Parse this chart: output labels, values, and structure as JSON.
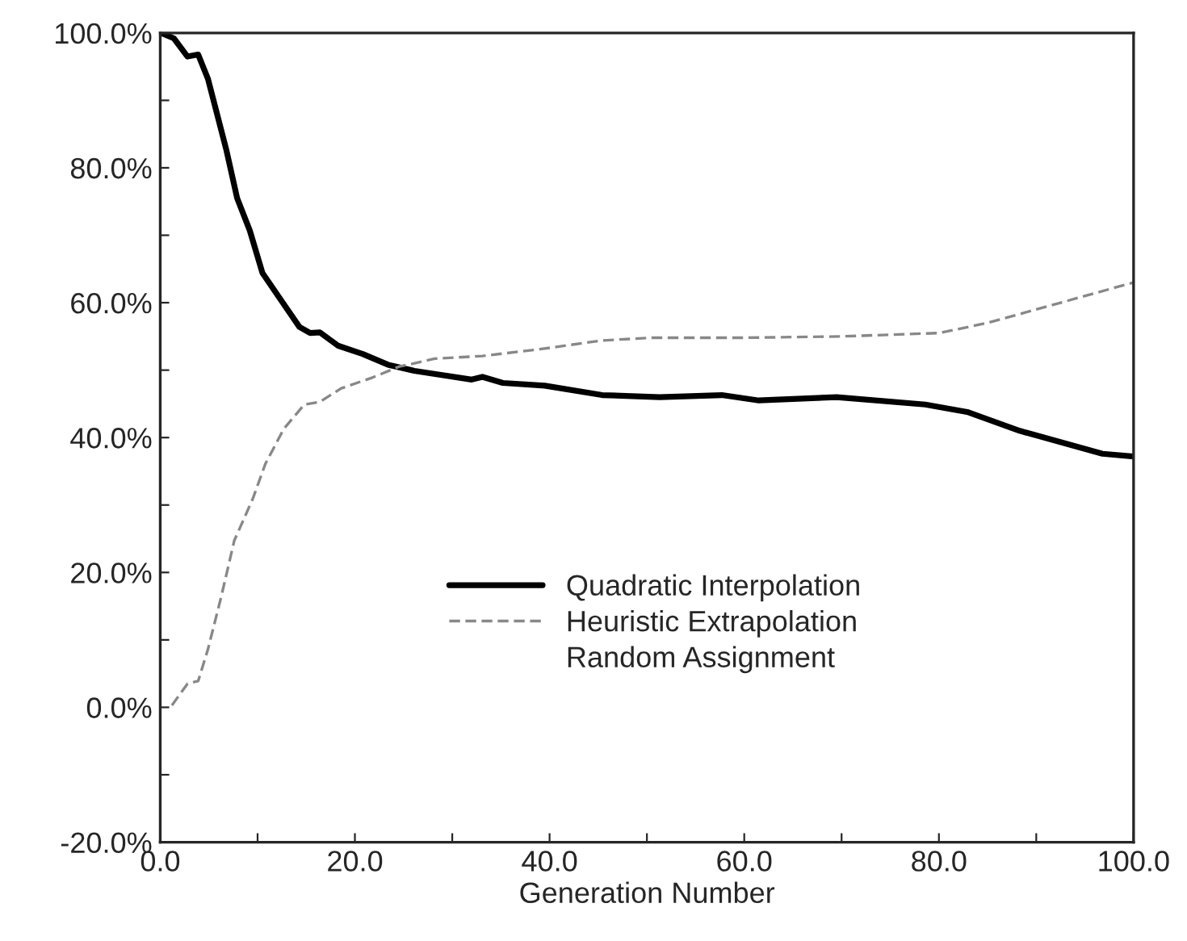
{
  "chart_data": {
    "type": "line",
    "xlabel": "Generation Number",
    "xlim": [
      0,
      100
    ],
    "xticks": [
      {
        "value": 0,
        "label": "0.0"
      },
      {
        "value": 10,
        "label": null
      },
      {
        "value": 20,
        "label": "20.0"
      },
      {
        "value": 30,
        "label": null
      },
      {
        "value": 40,
        "label": "40.0"
      },
      {
        "value": 50,
        "label": null
      },
      {
        "value": 60,
        "label": "60.0"
      },
      {
        "value": 70,
        "label": null
      },
      {
        "value": 80,
        "label": "80.0"
      },
      {
        "value": 90,
        "label": null
      },
      {
        "value": 100,
        "label": "100.0"
      }
    ],
    "ylim": [
      -20,
      100
    ],
    "yticks": [
      {
        "value": -20,
        "label": "-20.0%"
      },
      {
        "value": -10,
        "label": null
      },
      {
        "value": 0,
        "label": "0.0%"
      },
      {
        "value": 10,
        "label": null
      },
      {
        "value": 20,
        "label": "20.0%"
      },
      {
        "value": 30,
        "label": null
      },
      {
        "value": 40,
        "label": "40.0%"
      },
      {
        "value": 50,
        "label": null
      },
      {
        "value": 60,
        "label": "60.0%"
      },
      {
        "value": 70,
        "label": null
      },
      {
        "value": 80,
        "label": "80.0%"
      },
      {
        "value": 90,
        "label": null
      },
      {
        "value": 100,
        "label": "100.0%"
      }
    ],
    "grid": false,
    "legend": "center",
    "marker": "none",
    "series": [
      {
        "name": "Quadratic Interpolation",
        "color": "#000000",
        "line_style": "solid",
        "x": [
          0.1,
          1.4,
          2.8,
          3.9,
          4.9,
          6.8,
          7.9,
          9.2,
          10.5,
          12.4,
          14.3,
          15.4,
          16.4,
          18.3,
          20.8,
          23.4,
          26.1,
          32,
          33.1,
          35.2,
          39.5,
          45.4,
          51.3,
          57.7,
          61.5,
          69.5,
          78.6,
          82.9,
          88.3,
          96.8,
          100
        ],
        "values": [
          100,
          99.2,
          96.5,
          96.8,
          93.2,
          82.6,
          75.5,
          70.7,
          64.4,
          60.4,
          56.4,
          55.5,
          55.6,
          53.6,
          52.4,
          50.8,
          49.9,
          48.6,
          49.0,
          48.1,
          47.7,
          46.3,
          46.0,
          46.3,
          45.5,
          46.0,
          44.9,
          43.8,
          41.0,
          37.6,
          37.2
        ]
      },
      {
        "name": "Heuristic Extrapolation",
        "color": "#888888",
        "line_style": "dashed",
        "x": [
          1.2,
          2.8,
          3.9,
          4.9,
          6.3,
          7.6,
          9.5,
          10.8,
          12.7,
          14.8,
          16.4,
          18.6,
          21.8,
          24.5,
          28.2,
          33.1,
          39,
          45.4,
          50.5,
          60,
          70,
          80,
          85,
          90,
          100
        ],
        "values": [
          0.3,
          3.5,
          3.9,
          8.6,
          16.6,
          24.7,
          30.9,
          36.1,
          41.3,
          44.9,
          45.3,
          47.3,
          48.9,
          50.5,
          51.7,
          52.1,
          53.1,
          54.4,
          54.8,
          54.8,
          55.0,
          55.5,
          57.0,
          59.0,
          63.0
        ]
      },
      {
        "name": "Random Assignment"
      }
    ]
  }
}
